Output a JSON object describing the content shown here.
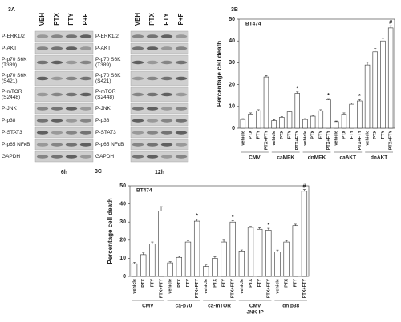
{
  "panel_a": {
    "label": "3A",
    "lanes": [
      "VEH",
      "PTX",
      "FTY",
      "P+F"
    ],
    "rows": [
      [
        "P-ERK1/2"
      ],
      [
        "P-AKT"
      ],
      [
        "P-p70 S6K",
        "(T389)"
      ],
      [
        "P-p70 S6K",
        "(S421)"
      ],
      [
        "P-mTOR",
        "(S2448)"
      ],
      [
        "P-JNK"
      ],
      [
        "P-p38"
      ],
      [
        "P-STAT3"
      ],
      [
        "P-p65 NFκB"
      ],
      [
        "GAPDH"
      ]
    ],
    "times": [
      "6h",
      "12h"
    ]
  },
  "chart_data": [
    {
      "type": "bar",
      "label": "3B",
      "inner_label": "BT474",
      "y_label": "Percentage cell death",
      "color": "#ffffff",
      "ylim": [
        0,
        50
      ],
      "yticks": [
        0,
        10,
        20,
        30,
        40,
        50
      ],
      "groups": [
        {
          "names": [
            "CMV"
          ],
          "categories": [
            "vehicle",
            "PTX",
            "FTY",
            "PTX+FTY"
          ],
          "values": [
            4,
            6.5,
            8,
            23.5
          ],
          "errors": [
            0.4,
            0.5,
            0.5,
            0.6
          ]
        },
        {
          "names": [
            "caMEK"
          ],
          "categories": [
            "vehicle",
            "PTX",
            "FTY",
            "PTX+FTY"
          ],
          "values": [
            3.5,
            5,
            7.5,
            16
          ],
          "errors": [
            0.4,
            0.4,
            0.5,
            0.6
          ]
        },
        {
          "names": [
            "dnMEK"
          ],
          "categories": [
            "vehicle",
            "PTX",
            "FTY",
            "PTX+FTY"
          ],
          "values": [
            4,
            5.5,
            8,
            13
          ],
          "errors": [
            0.4,
            0.4,
            0.5,
            0.6
          ]
        },
        {
          "names": [
            "caAKT"
          ],
          "categories": [
            "vehicle",
            "PTX",
            "FTY",
            "PTX+FTY"
          ],
          "values": [
            3,
            6.5,
            11,
            12.5
          ],
          "errors": [
            0.3,
            0.5,
            0.6,
            0.6
          ]
        },
        {
          "names": [
            "dnAKT"
          ],
          "categories": [
            "vehicle",
            "PTX",
            "FTY",
            "PTX+FTY"
          ],
          "values": [
            29,
            35,
            40,
            46
          ],
          "errors": [
            1.2,
            1.5,
            1.2,
            1
          ]
        }
      ],
      "annotations": [
        {
          "text": "*",
          "group": 1,
          "index": 3
        },
        {
          "text": "*",
          "group": 2,
          "index": 3
        },
        {
          "text": "*",
          "group": 3,
          "index": 3
        },
        {
          "text": "#",
          "group": 4,
          "index": 3
        }
      ]
    },
    {
      "type": "bar",
      "label": "3C",
      "inner_label": "BT474",
      "y_label": "Percentage cell death",
      "color": "#ffffff",
      "ylim": [
        0,
        50
      ],
      "yticks": [
        0,
        10,
        20,
        30,
        40,
        50
      ],
      "groups": [
        {
          "names": [
            "CMV"
          ],
          "categories": [
            "vehicle",
            "PTX",
            "FTY",
            "PTX+FTY"
          ],
          "values": [
            7,
            12,
            18,
            36
          ],
          "errors": [
            0.8,
            1,
            1,
            2.5
          ]
        },
        {
          "names": [
            "ca-p70"
          ],
          "categories": [
            "vehicle",
            "PTX",
            "FTY",
            "PTX+FTY"
          ],
          "values": [
            7.5,
            10.5,
            19,
            30.5
          ],
          "errors": [
            0.6,
            0.6,
            0.8,
            1
          ]
        },
        {
          "names": [
            "ca-mTOR"
          ],
          "categories": [
            "vehicle",
            "PTX",
            "FTY",
            "PTX+FTY"
          ],
          "values": [
            5.5,
            10,
            19,
            30
          ],
          "errors": [
            0.8,
            0.8,
            1,
            0.8
          ]
        },
        {
          "names": [
            "CMV",
            "JNK-IP"
          ],
          "categories": [
            "vehicle",
            "PTX",
            "FTY",
            "PTX+FTY"
          ],
          "values": [
            14,
            27,
            26,
            25.5
          ],
          "errors": [
            0.6,
            0.6,
            0.8,
            1
          ]
        },
        {
          "names": [
            "dn p38"
          ],
          "categories": [
            "vehicle",
            "PTX",
            "FTY",
            "PTX+FTY"
          ],
          "values": [
            13.5,
            19,
            28,
            47
          ],
          "errors": [
            1,
            0.8,
            0.8,
            1
          ]
        }
      ],
      "annotations": [
        {
          "text": "*",
          "group": 1,
          "index": 3
        },
        {
          "text": "*",
          "group": 2,
          "index": 3
        },
        {
          "text": "*",
          "group": 3,
          "index": 3
        },
        {
          "text": "#",
          "group": 4,
          "index": 3
        }
      ]
    }
  ]
}
